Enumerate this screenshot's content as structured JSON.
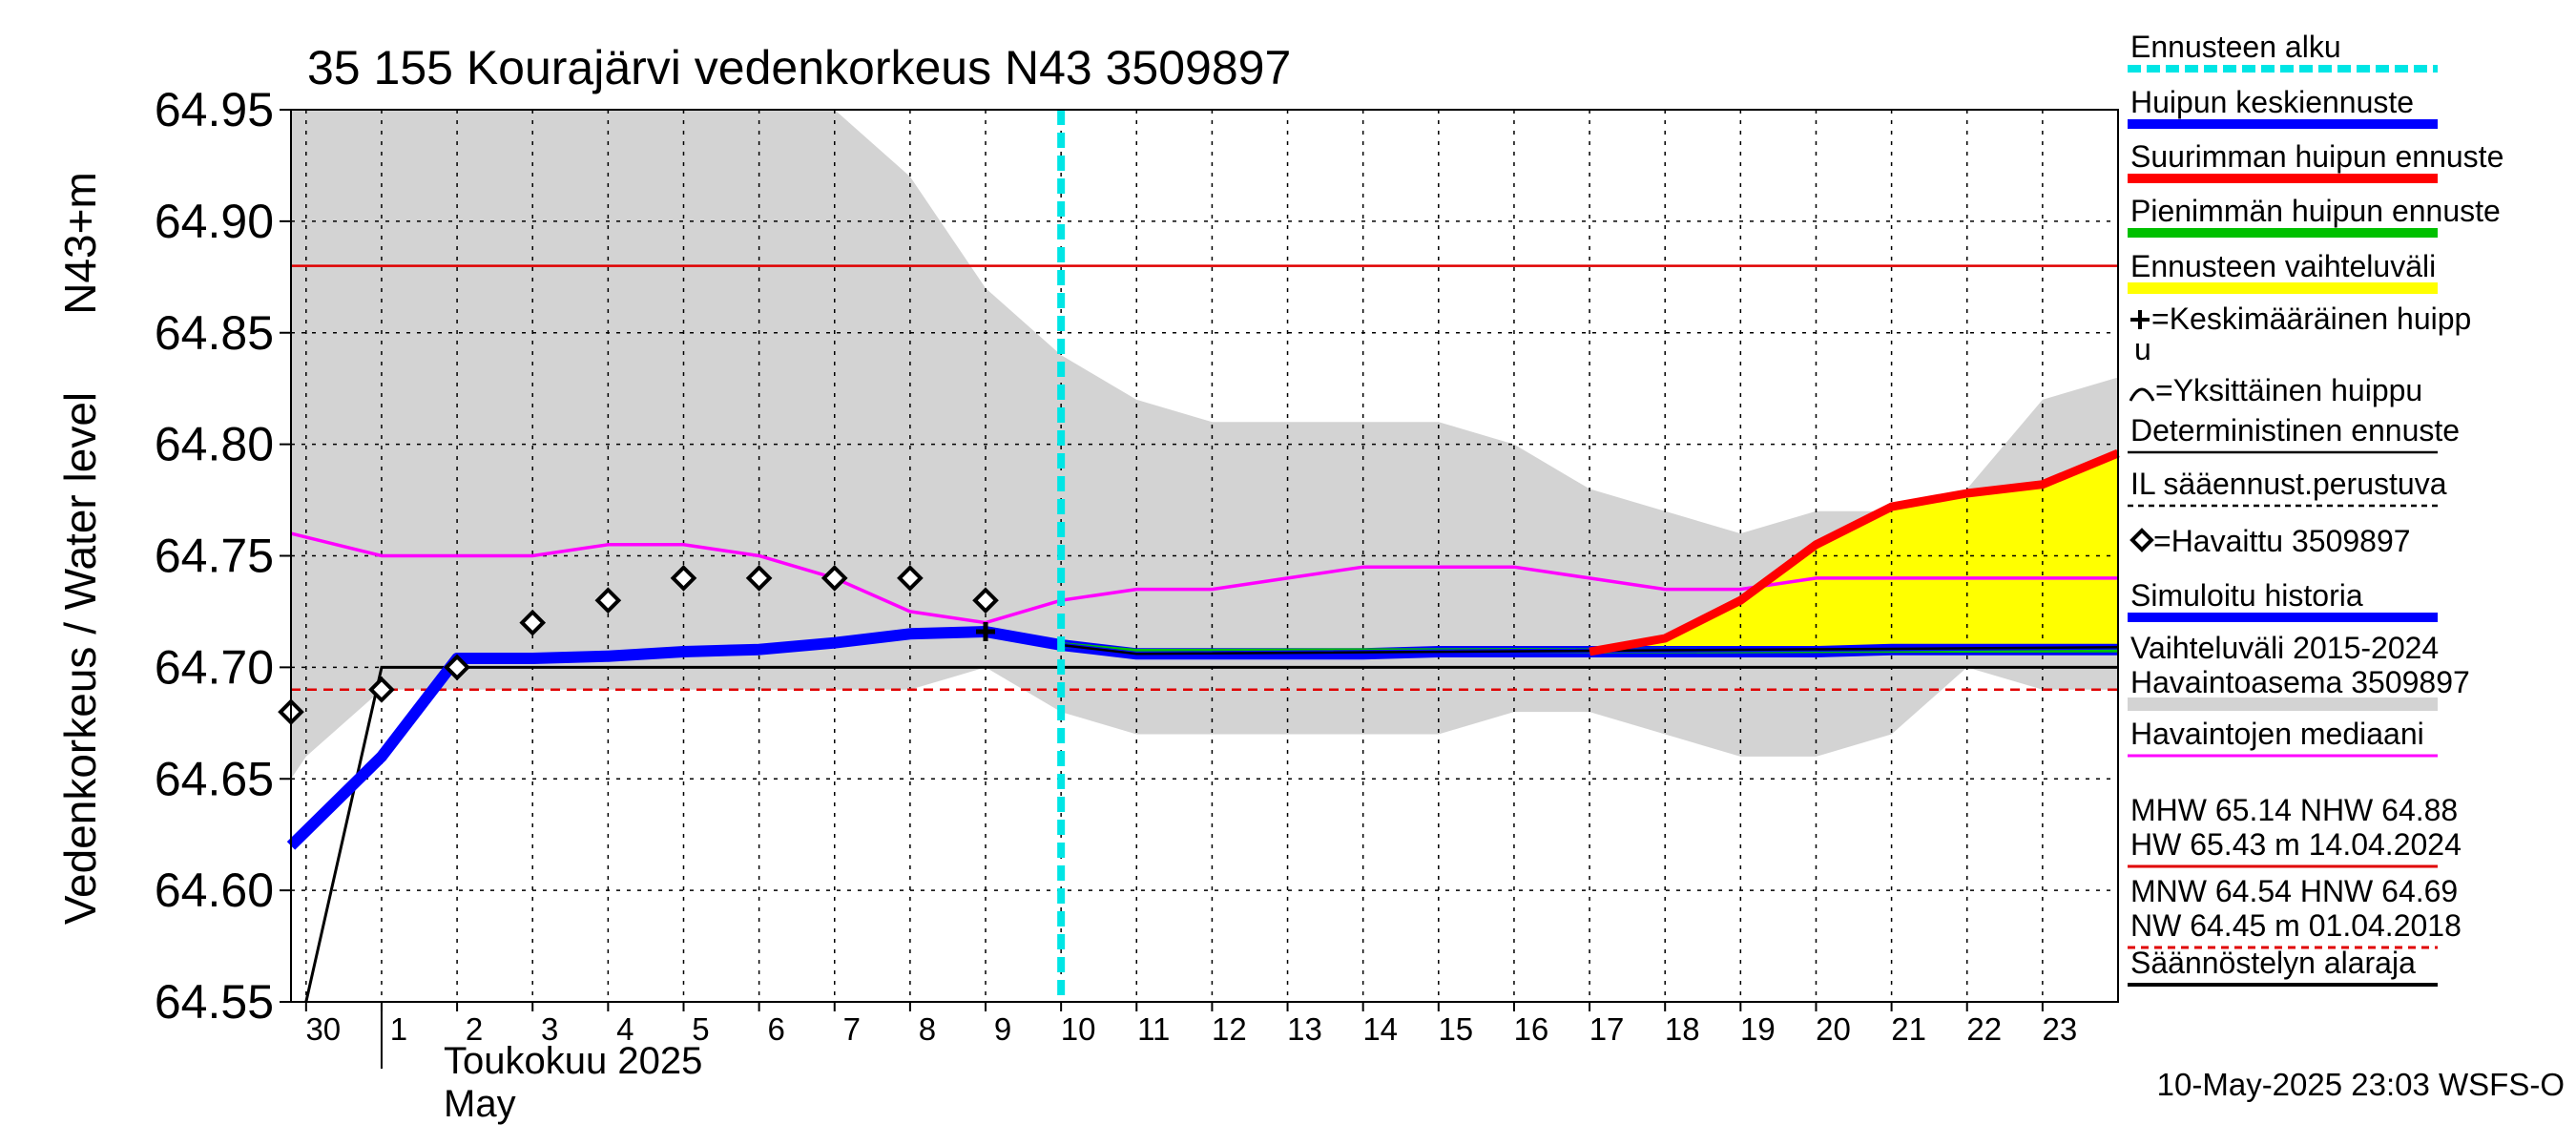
{
  "chart_data": {
    "type": "line",
    "title": "35 155 Kourajärvi vedenkorkeus N43 3509897",
    "ylabel_left": "Vedenkorkeus / Water level",
    "ylabel_unit": "N43+m",
    "xlabel_month_fi": "Toukokuu  2025",
    "xlabel_month_en": "May",
    "footer": "10-May-2025 23:03 WSFS-O",
    "ylim": [
      64.55,
      64.95
    ],
    "yticks": [
      "64.55",
      "64.60",
      "64.65",
      "64.70",
      "64.75",
      "64.80",
      "64.85",
      "64.90",
      "64.95"
    ],
    "x_tick_labels": [
      "30",
      "1",
      "2",
      "3",
      "4",
      "5",
      "6",
      "7",
      "8",
      "9",
      "10",
      "11",
      "12",
      "13",
      "14",
      "15",
      "16",
      "17",
      "18",
      "19",
      "20",
      "21",
      "22",
      "23"
    ],
    "x_tick_days": [
      0,
      1,
      2,
      3,
      4,
      5,
      6,
      7,
      8,
      9,
      10,
      11,
      12,
      13,
      14,
      15,
      16,
      17,
      18,
      19,
      20,
      21,
      22,
      23
    ],
    "x_range_days": [
      -0.2,
      24.0
    ],
    "grid": true,
    "legend_position": "right",
    "forecast_start_day": 10,
    "reference_lines": {
      "nhw": 64.88,
      "hnw": 64.69,
      "regulation_lower": 64.7
    },
    "series": {
      "variation_range_upper": {
        "x": [
          -0.2,
          6.8,
          7,
          8,
          8.6,
          9,
          10,
          11,
          12,
          13,
          14,
          15,
          16,
          17,
          18,
          19,
          20,
          21,
          22,
          23,
          24
        ],
        "y": [
          64.95,
          64.95,
          64.95,
          64.92,
          64.89,
          64.87,
          64.84,
          64.82,
          64.81,
          64.81,
          64.81,
          64.81,
          64.8,
          64.78,
          64.77,
          64.76,
          64.77,
          64.77,
          64.78,
          64.82,
          64.83
        ]
      },
      "variation_range_lower": {
        "x": [
          -0.2,
          0,
          1,
          2,
          3,
          4,
          5,
          6,
          7,
          8,
          9,
          10,
          11,
          12,
          13,
          14,
          15,
          16,
          17,
          18,
          19,
          20,
          21,
          22,
          23,
          24
        ],
        "y": [
          64.65,
          64.66,
          64.69,
          64.69,
          64.69,
          64.69,
          64.69,
          64.69,
          64.69,
          64.69,
          64.7,
          64.68,
          64.67,
          64.67,
          64.67,
          64.67,
          64.67,
          64.68,
          64.68,
          64.67,
          64.66,
          64.66,
          64.67,
          64.7,
          64.69,
          64.69
        ]
      },
      "observed_median": {
        "x": [
          -0.2,
          1,
          2,
          3,
          4,
          5,
          6,
          7,
          8,
          9,
          10,
          11,
          12,
          13,
          14,
          15,
          16,
          17,
          18,
          19,
          20,
          21,
          22,
          23,
          24
        ],
        "y": [
          64.76,
          64.75,
          64.75,
          64.75,
          64.755,
          64.755,
          64.75,
          64.74,
          64.725,
          64.72,
          64.73,
          64.735,
          64.735,
          64.74,
          64.745,
          64.745,
          64.745,
          64.74,
          64.735,
          64.735,
          64.74,
          64.74,
          64.74,
          64.74,
          64.74
        ]
      },
      "forecast_range_upper": {
        "x": [
          17,
          18,
          19,
          20,
          21,
          22,
          23,
          24
        ],
        "y": [
          64.707,
          64.713,
          64.73,
          64.755,
          64.772,
          64.778,
          64.782,
          64.796
        ]
      },
      "forecast_range_lower": {
        "x": [
          17,
          18,
          19,
          20,
          21,
          22,
          23,
          24
        ],
        "y": [
          64.707,
          64.707,
          64.707,
          64.707,
          64.708,
          64.708,
          64.708,
          64.708
        ]
      },
      "max_peak_forecast": {
        "x": [
          17,
          18,
          19,
          20,
          21,
          22,
          23,
          24
        ],
        "y": [
          64.707,
          64.713,
          64.73,
          64.755,
          64.772,
          64.778,
          64.782,
          64.796
        ]
      },
      "min_peak_forecast": {
        "x": [
          10,
          11,
          24
        ],
        "y": [
          64.71,
          64.707,
          64.708
        ]
      },
      "mean_peak_forecast": {
        "x": [
          10,
          11,
          24
        ],
        "y": [
          64.71,
          64.706,
          64.709
        ]
      },
      "simulated_history": {
        "x": [
          -0.2,
          1,
          2,
          3,
          4,
          5,
          6,
          7,
          8,
          9,
          10,
          11,
          12,
          13,
          14,
          15,
          16,
          17,
          18,
          19,
          20,
          21,
          22,
          23,
          24
        ],
        "y": [
          64.62,
          64.66,
          64.704,
          64.704,
          64.705,
          64.707,
          64.708,
          64.711,
          64.715,
          64.716,
          64.71,
          64.706,
          64.706,
          64.706,
          64.706,
          64.707,
          64.707,
          64.707,
          64.707,
          64.707,
          64.707,
          64.708,
          64.708,
          64.708,
          64.708
        ]
      },
      "regulation_lower_limit": {
        "x": [
          0,
          1,
          24
        ],
        "y": [
          64.55,
          64.7,
          64.7
        ]
      },
      "observed": {
        "x": [
          -0.2,
          1,
          2,
          3,
          4,
          5,
          6,
          7,
          8,
          9
        ],
        "y": [
          64.68,
          64.69,
          64.7,
          64.72,
          64.73,
          64.74,
          64.74,
          64.74,
          64.74,
          64.73
        ]
      },
      "mean_peak_marker": {
        "x": [
          9
        ],
        "y": [
          64.716
        ]
      }
    },
    "colors": {
      "forecast_start": "#00e5e5",
      "mean_peak": "#0000ff",
      "max_peak": "#ff0000",
      "min_peak": "#00c000",
      "forecast_range": "#ffff00",
      "median": "#ff00ff",
      "simulated": "#0000ff",
      "variation": "#d3d3d3",
      "hw_line": "#e00000",
      "nw_line": "#e00000"
    },
    "legend": [
      {
        "key": "forecast_start",
        "label": "Ennusteen alku",
        "style": "dashed-cyan"
      },
      {
        "key": "mean_peak",
        "label": "Huipun keskiennuste",
        "style": "thick-blue"
      },
      {
        "key": "max_peak",
        "label": "Suurimman huipun ennuste",
        "style": "thick-red"
      },
      {
        "key": "min_peak",
        "label": "Pienimmän huipun ennuste",
        "style": "thick-green"
      },
      {
        "key": "forecast_range",
        "label": "Ennusteen vaihteluväli",
        "style": "thick-yellow"
      },
      {
        "key": "cross",
        "label": "=Keskimääräinen huipp",
        "label2": "u",
        "style": "cross"
      },
      {
        "key": "arc",
        "label": "=Yksittäinen huippu",
        "style": "arc"
      },
      {
        "key": "det",
        "label": "Deterministinen ennuste",
        "style": "thin-black"
      },
      {
        "key": "il",
        "label": "IL sääennust.perustuva",
        "style": "dashed-black"
      },
      {
        "key": "obs",
        "label": "=Havaittu 3509897",
        "style": "diamond"
      },
      {
        "key": "sim",
        "label": "Simuloitu historia",
        "style": "thick-blue"
      },
      {
        "key": "var",
        "label": "Vaihteluväli 2015-2024",
        "label2": " Havaintoasema 3509897",
        "style": "gray"
      },
      {
        "key": "median",
        "label": "Havaintojen mediaani",
        "style": "thin-magenta"
      },
      {
        "key": "mhw",
        "label": "MHW  65.14 NHW  64.88",
        "label2": "HW  65.43 m 14.04.2024",
        "style": "thin-red"
      },
      {
        "key": "mnw",
        "label": "MNW  64.54 HNW  64.69",
        "label2": "NW  64.45 m 01.04.2018",
        "style": "dashed-red"
      },
      {
        "key": "reg",
        "label": "Säännöstelyn alaraja",
        "style": "thick-black"
      }
    ]
  }
}
